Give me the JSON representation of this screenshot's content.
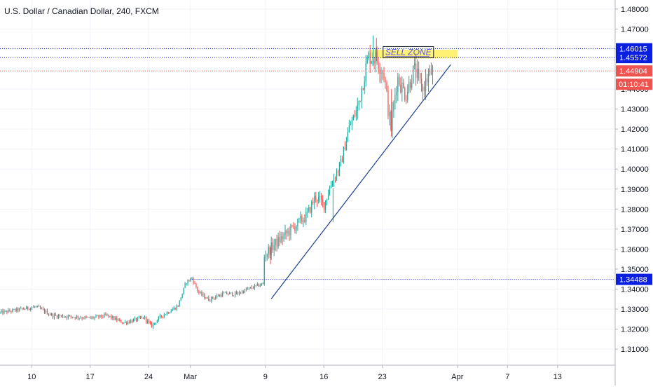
{
  "chart_data": {
    "type": "candlestick",
    "title": "U.S. Dollar / Canadian Dollar, 240, FXCM",
    "xlabel": "",
    "ylabel": "",
    "ylim": [
      1.302,
      1.4845
    ],
    "y_ticks": [
      "1.48000",
      "1.47000",
      "1.46000",
      "1.45000",
      "1.44000",
      "1.43000",
      "1.42000",
      "1.41000",
      "1.40000",
      "1.39000",
      "1.38000",
      "1.37000",
      "1.36000",
      "1.35000",
      "1.34000",
      "1.33000",
      "1.32000",
      "1.31000"
    ],
    "x_ticks": [
      {
        "label": "10",
        "day": 10
      },
      {
        "label": "17",
        "day": 17
      },
      {
        "label": "24",
        "day": 24
      },
      {
        "label": "Mar",
        "day": 29
      },
      {
        "label": "9",
        "day": 38
      },
      {
        "label": "16",
        "day": 45
      },
      {
        "label": "23",
        "day": 52
      },
      {
        "label": "Apr",
        "day": 61
      },
      {
        "label": "7",
        "day": 67
      },
      {
        "label": "13",
        "day": 73
      }
    ],
    "x_domain_days": [
      6.2,
      79.9
    ],
    "price_lines": [
      {
        "name": "resistance-high",
        "value": 1.46015,
        "label": "1.46015",
        "color": "#0b1fe0",
        "style": "dotted"
      },
      {
        "name": "resistance-low",
        "value": 1.45572,
        "label": "1.45572",
        "color": "#0b1fe0",
        "style": "dotted"
      },
      {
        "name": "current-price",
        "value": 1.44904,
        "label": "1.44904",
        "color": "#ef5350",
        "style": "dotted"
      },
      {
        "name": "support",
        "value": 1.34488,
        "label": "1.34488",
        "color": "#0b1fe0",
        "style": "dotted"
      }
    ],
    "countdown_label": "01:10:41",
    "sell_zone": {
      "label": "SELL ZONE",
      "y_top": 1.4596,
      "y_bottom": 1.4553,
      "x_start_day": 50.6,
      "x_end_day": 61.0,
      "fill": "#ffef5c"
    },
    "trendline": {
      "x1_day": 38.7,
      "y1": 1.3352,
      "x2_day": 60.2,
      "y2": 1.4522,
      "color": "#1e3f8f"
    },
    "up_color": "#26a69a",
    "down_color": "#ef5350",
    "anchors": [
      [
        6.2,
        1.3282
      ],
      [
        8.5,
        1.3298
      ],
      [
        10.5,
        1.3312
      ],
      [
        12.5,
        1.3268
      ],
      [
        15.0,
        1.3262
      ],
      [
        17.0,
        1.3255
      ],
      [
        19.0,
        1.3268
      ],
      [
        21.0,
        1.3232
      ],
      [
        23.5,
        1.3258
      ],
      [
        24.3,
        1.3215
      ],
      [
        25.5,
        1.3265
      ],
      [
        27.5,
        1.3315
      ],
      [
        28.5,
        1.3435
      ],
      [
        29.2,
        1.3455
      ],
      [
        30.0,
        1.3382
      ],
      [
        31.2,
        1.3348
      ],
      [
        33.0,
        1.3378
      ],
      [
        34.5,
        1.3375
      ],
      [
        36.0,
        1.3402
      ],
      [
        37.8,
        1.3428
      ],
      [
        38.0,
        1.3575
      ],
      [
        39.0,
        1.362
      ],
      [
        41.0,
        1.3695
      ],
      [
        43.0,
        1.377
      ],
      [
        44.0,
        1.3865
      ],
      [
        45.0,
        1.382
      ],
      [
        46.0,
        1.394
      ],
      [
        47.0,
        1.402
      ],
      [
        48.0,
        1.4205
      ],
      [
        49.0,
        1.43
      ],
      [
        49.8,
        1.446
      ],
      [
        50.3,
        1.4562
      ],
      [
        51.2,
        1.4555
      ],
      [
        52.2,
        1.4478
      ],
      [
        53.0,
        1.42
      ],
      [
        53.8,
        1.446
      ],
      [
        54.8,
        1.437
      ],
      [
        55.8,
        1.45
      ],
      [
        56.8,
        1.44
      ],
      [
        57.6,
        1.447
      ],
      [
        58.1,
        1.449
      ]
    ]
  }
}
